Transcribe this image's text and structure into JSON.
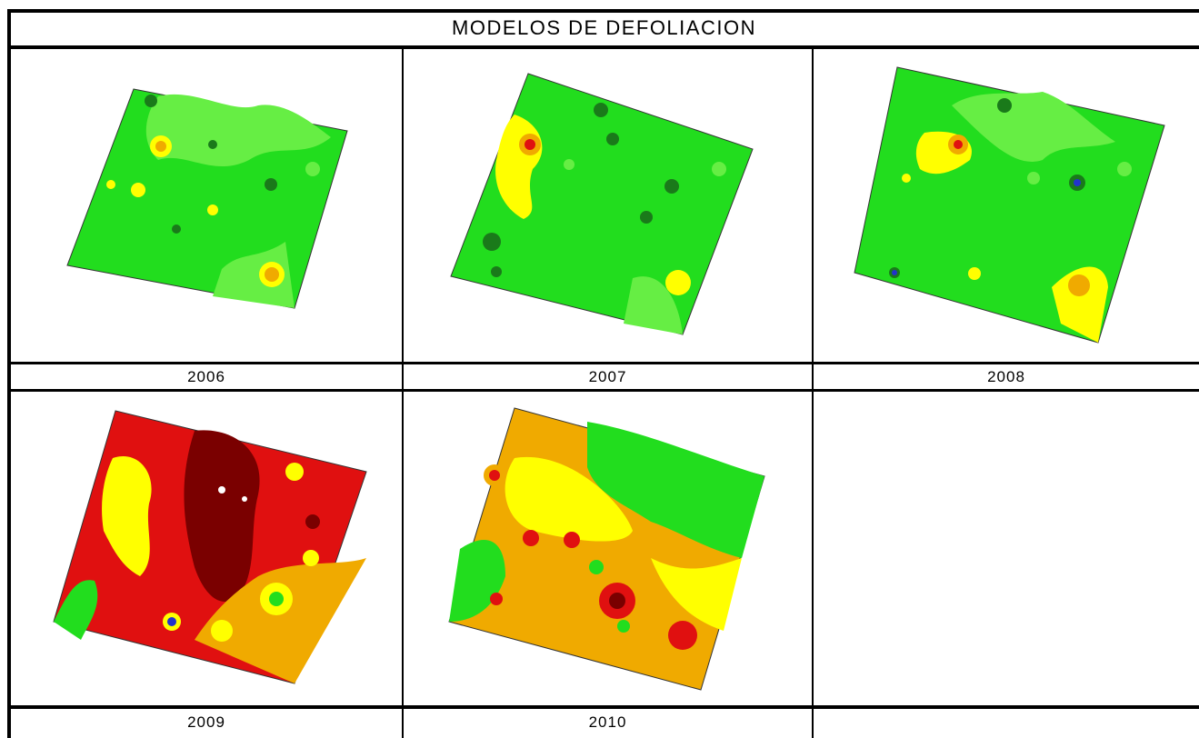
{
  "document": {
    "title": "MODELOS DE DEFOLIACION"
  },
  "panels": [
    {
      "year": "2006"
    },
    {
      "year": "2007"
    },
    {
      "year": "2008"
    },
    {
      "year": "2009"
    },
    {
      "year": "2010"
    },
    {
      "year": ""
    }
  ],
  "colors": {
    "green": "#22dd1e",
    "light_green": "#66ee44",
    "dark_green": "#1a7a1a",
    "yellow": "#ffff00",
    "orange": "#f0aa00",
    "red": "#e01010",
    "dark_red": "#7a0000",
    "blue": "#2233cc"
  }
}
